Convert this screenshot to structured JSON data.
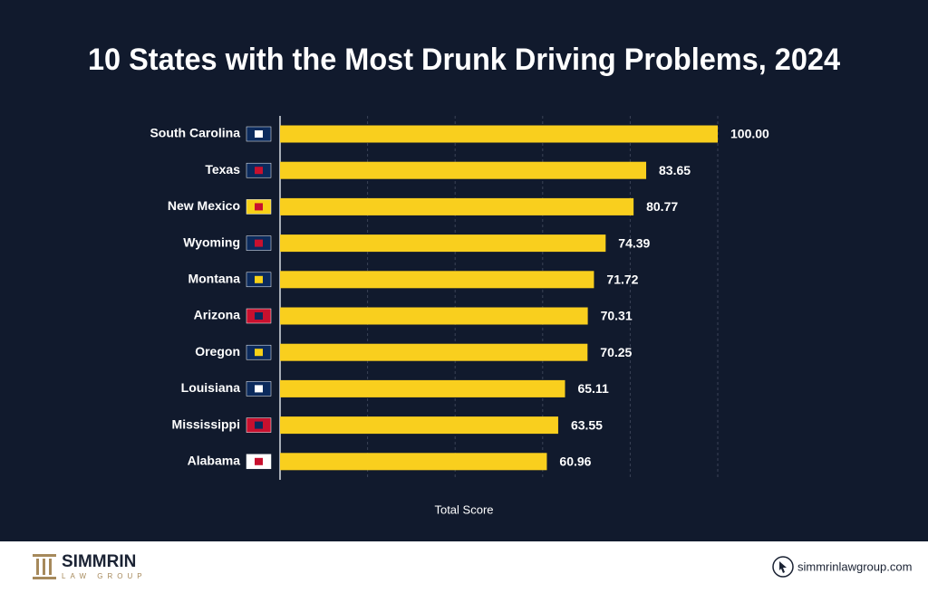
{
  "chart_data": {
    "type": "bar",
    "orientation": "horizontal",
    "title": "10 States with the Most Drunk Driving Problems, 2024",
    "xlabel": "Total Score",
    "categories": [
      "South Carolina",
      "Texas",
      "New Mexico",
      "Wyoming",
      "Montana",
      "Arizona",
      "Oregon",
      "Louisiana",
      "Mississippi",
      "Alabama"
    ],
    "values": [
      100,
      83.65,
      80.77,
      74.39,
      71.72,
      70.31,
      70.25,
      65.11,
      63.55,
      60.96
    ],
    "value_labels": [
      "100.00",
      "83.65",
      "80.77",
      "74.39",
      "71.72",
      "70.31",
      "70.25",
      "65.11",
      "63.55",
      "60.96"
    ],
    "color": "#f9cf1e",
    "xlim": [
      0,
      100
    ],
    "xticks": [
      0,
      20,
      40,
      60,
      80,
      100
    ],
    "grid": true
  },
  "footer": {
    "brand": "SIMMRIN",
    "brand_sub": "LAW GROUP",
    "url": "simmrinlawgroup.com"
  }
}
